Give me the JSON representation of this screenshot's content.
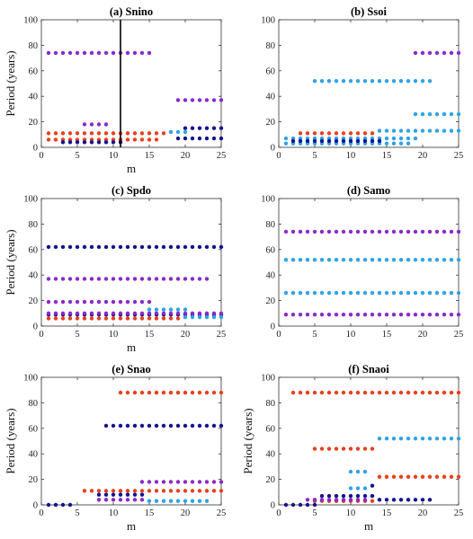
{
  "colors": {
    "purple": "#8a2bc8",
    "red": "#e8401c",
    "navy": "#14148f",
    "lightblue": "#2fa3e6",
    "axis": "#333333",
    "vline": "#000000"
  },
  "chart_data": [
    {
      "type": "scatter",
      "title": "(a) Snino",
      "xlabel": "m",
      "ylabel": "Period (years)",
      "xlim": [
        0,
        25
      ],
      "ylim": [
        0,
        100
      ],
      "xticks": [
        "0",
        "5",
        "10",
        "15",
        "20",
        "25"
      ],
      "yticks": [
        "0",
        "20",
        "40",
        "60",
        "80",
        "100"
      ],
      "vline_x": 11,
      "series": [
        {
          "color": "purple",
          "rows": [
            {
              "y": 74,
              "x_from": 1,
              "x_to": 15
            },
            {
              "y": 18,
              "x_from": 6,
              "x_to": 9
            },
            {
              "y": 37,
              "x_from": 19,
              "x_to": 25
            }
          ]
        },
        {
          "color": "red",
          "rows": [
            {
              "y": 11,
              "x_from": 1,
              "x_to": 17
            },
            {
              "y": 6,
              "x_from": 1,
              "x_to": 16
            }
          ]
        },
        {
          "color": "navy",
          "rows": [
            {
              "y": 4,
              "x_from": 3,
              "x_to": 11
            },
            {
              "y": 15,
              "x_from": 20,
              "x_to": 25
            },
            {
              "y": 7,
              "x_from": 19,
              "x_to": 25
            }
          ]
        },
        {
          "color": "lightblue",
          "rows": [
            {
              "y": 12,
              "x_from": 18,
              "x_to": 20
            }
          ]
        }
      ]
    },
    {
      "type": "scatter",
      "title": "(b) Ssoi",
      "xlabel": "",
      "ylabel": "",
      "xlim": [
        0,
        25
      ],
      "ylim": [
        0,
        100
      ],
      "xticks": [
        "0",
        "5",
        "10",
        "15",
        "20",
        "25"
      ],
      "yticks": [
        "0",
        "20",
        "40",
        "60",
        "80",
        "100"
      ],
      "series": [
        {
          "color": "purple",
          "rows": [
            {
              "y": 74,
              "x_from": 19,
              "x_to": 25
            }
          ]
        },
        {
          "color": "lightblue",
          "rows": [
            {
              "y": 52,
              "x_from": 5,
              "x_to": 21
            },
            {
              "y": 26,
              "x_from": 19,
              "x_to": 25
            },
            {
              "y": 13,
              "x_from": 14,
              "x_to": 25
            },
            {
              "y": 7,
              "x_from": 1,
              "x_to": 19
            },
            {
              "y": 3,
              "x_from": 1,
              "x_to": 18
            }
          ]
        },
        {
          "color": "red",
          "rows": [
            {
              "y": 11,
              "x_from": 3,
              "x_to": 13
            }
          ]
        },
        {
          "color": "navy",
          "rows": [
            {
              "y": 5,
              "x_from": 2,
              "x_to": 14
            }
          ]
        }
      ]
    },
    {
      "type": "scatter",
      "title": "(c) Spdo",
      "xlabel": "m",
      "ylabel": "Period (years)",
      "xlim": [
        0,
        25
      ],
      "ylim": [
        0,
        100
      ],
      "xticks": [
        "0",
        "5",
        "10",
        "15",
        "20",
        "25"
      ],
      "yticks": [
        "0",
        "20",
        "40",
        "60",
        "80",
        "100"
      ],
      "series": [
        {
          "color": "navy",
          "rows": [
            {
              "y": 62,
              "x_from": 1,
              "x_to": 25
            },
            {
              "y": 9,
              "x_from": 1,
              "x_to": 25
            }
          ]
        },
        {
          "color": "purple",
          "rows": [
            {
              "y": 37,
              "x_from": 1,
              "x_to": 23
            },
            {
              "y": 19,
              "x_from": 1,
              "x_to": 15
            },
            {
              "y": 10,
              "x_from": 1,
              "x_to": 25
            }
          ]
        },
        {
          "color": "lightblue",
          "rows": [
            {
              "y": 13,
              "x_from": 15,
              "x_to": 20
            },
            {
              "y": 7,
              "x_from": 20,
              "x_to": 25
            }
          ]
        },
        {
          "color": "red",
          "rows": [
            {
              "y": 6,
              "x_from": 1,
              "x_to": 19
            }
          ]
        }
      ]
    },
    {
      "type": "scatter",
      "title": "(d) Samo",
      "xlabel": "",
      "ylabel": "",
      "xlim": [
        0,
        25
      ],
      "ylim": [
        0,
        100
      ],
      "xticks": [
        "0",
        "5",
        "10",
        "15",
        "20",
        "25"
      ],
      "yticks": [
        "0",
        "20",
        "40",
        "60",
        "80",
        "100"
      ],
      "series": [
        {
          "color": "purple",
          "rows": [
            {
              "y": 74,
              "x_from": 1,
              "x_to": 25
            },
            {
              "y": 9,
              "x_from": 1,
              "x_to": 25
            }
          ]
        },
        {
          "color": "lightblue",
          "rows": [
            {
              "y": 52,
              "x_from": 1,
              "x_to": 25
            },
            {
              "y": 26,
              "x_from": 1,
              "x_to": 25
            }
          ]
        }
      ]
    },
    {
      "type": "scatter",
      "title": "(e) Snao",
      "xlabel": "m",
      "ylabel": "Period (years)",
      "xlim": [
        0,
        25
      ],
      "ylim": [
        0,
        100
      ],
      "xticks": [
        "0",
        "5",
        "10",
        "15",
        "20",
        "25"
      ],
      "yticks": [
        "0",
        "20",
        "40",
        "60",
        "80",
        "100"
      ],
      "series": [
        {
          "color": "red",
          "rows": [
            {
              "y": 88,
              "x_from": 11,
              "x_to": 25
            },
            {
              "y": 11,
              "x_from": 6,
              "x_to": 25
            }
          ]
        },
        {
          "color": "navy",
          "rows": [
            {
              "y": 62,
              "x_from": 9,
              "x_to": 25
            },
            {
              "y": 8,
              "x_from": 8,
              "x_to": 14
            },
            {
              "y": 0,
              "x_from": 1,
              "x_to": 4
            }
          ]
        },
        {
          "color": "purple",
          "rows": [
            {
              "y": 18,
              "x_from": 14,
              "x_to": 25
            },
            {
              "y": 4,
              "x_from": 8,
              "x_to": 14
            }
          ]
        },
        {
          "color": "lightblue",
          "rows": [
            {
              "y": 3,
              "x_from": 15,
              "x_to": 23
            }
          ]
        }
      ]
    },
    {
      "type": "scatter",
      "title": "(f) Snaoi",
      "xlabel": "m",
      "ylabel": "Period (years)",
      "xlim": [
        0,
        25
      ],
      "ylim": [
        0,
        100
      ],
      "xticks": [
        "0",
        "5",
        "10",
        "15",
        "20",
        "25"
      ],
      "yticks": [
        "0",
        "20",
        "40",
        "60",
        "80",
        "100"
      ],
      "series": [
        {
          "color": "red",
          "rows": [
            {
              "y": 88,
              "x_from": 2,
              "x_to": 25
            },
            {
              "y": 44,
              "x_from": 5,
              "x_to": 13
            },
            {
              "y": 22,
              "x_from": 14,
              "x_to": 25
            },
            {
              "y": 3,
              "x_from": 5,
              "x_to": 13
            }
          ]
        },
        {
          "color": "lightblue",
          "rows": [
            {
              "y": 52,
              "x_from": 14,
              "x_to": 25
            },
            {
              "y": 26,
              "x_from": 10,
              "x_to": 12
            },
            {
              "y": 13,
              "x_from": 10,
              "x_to": 12
            }
          ]
        },
        {
          "color": "navy",
          "rows": [
            {
              "y": 15,
              "x_from": 13,
              "x_to": 13
            },
            {
              "y": 7,
              "x_from": 6,
              "x_to": 13
            },
            {
              "y": 4,
              "x_from": 14,
              "x_to": 21
            },
            {
              "y": 0,
              "x_from": 1,
              "x_to": 5
            }
          ]
        },
        {
          "color": "purple",
          "rows": [
            {
              "y": 4,
              "x_from": 4,
              "x_to": 12
            }
          ]
        }
      ]
    }
  ]
}
